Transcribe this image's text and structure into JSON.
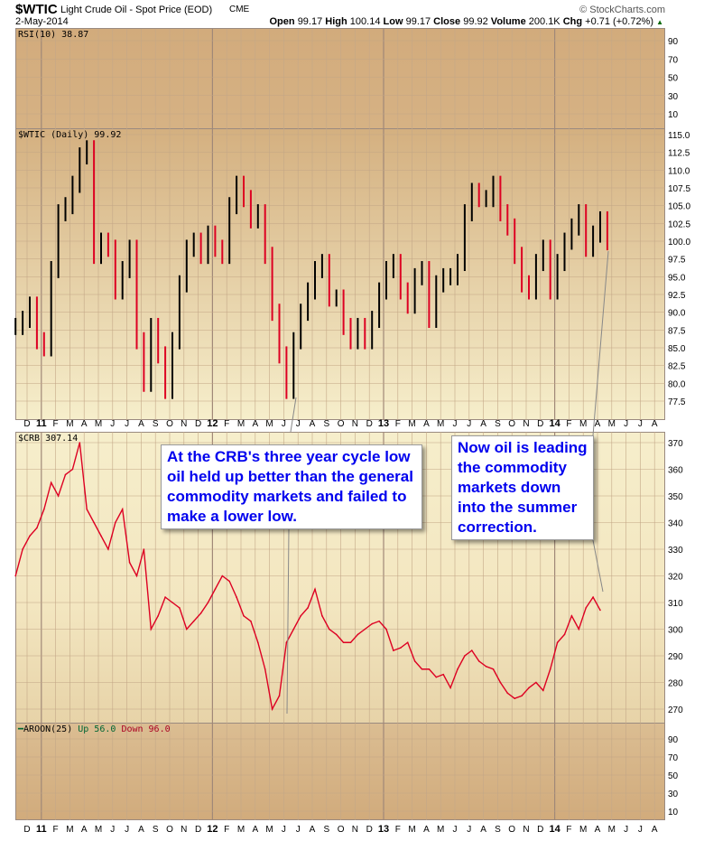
{
  "header": {
    "symbol": "$WTIC",
    "name": "Light Crude Oil - Spot Price (EOD)",
    "exchange": "CME",
    "date": "2-May-2014",
    "copyright": "© StockCharts.com",
    "open_label": "Open",
    "open": "99.17",
    "high_label": "High",
    "high": "100.14",
    "low_label": "Low",
    "low": "99.17",
    "close_label": "Close",
    "close": "99.92",
    "volume_label": "Volume",
    "volume": "200.1K",
    "chg_label": "Chg",
    "chg": "+0.71 (+0.72%)"
  },
  "colors": {
    "panel_top": "#d0aa7a",
    "panel_bottom": "#f5ebc8",
    "up": "#000000",
    "down": "#dd0022",
    "annotation_text": "#0000ee"
  },
  "panels": {
    "rsi": {
      "label": "RSI(10) 38.87",
      "ticks": [
        "90",
        "70",
        "50",
        "30",
        "10"
      ]
    },
    "wtic": {
      "label": "$WTIC (Daily) 99.92",
      "ticks": [
        "115.0",
        "112.5",
        "110.0",
        "107.5",
        "105.0",
        "102.5",
        "100.0",
        "97.5",
        "95.0",
        "92.5",
        "90.0",
        "87.5",
        "85.0",
        "82.5",
        "80.0",
        "77.5"
      ]
    },
    "crb": {
      "label": "$CRB 307.14",
      "ticks": [
        "370",
        "360",
        "350",
        "340",
        "330",
        "320",
        "310",
        "300",
        "290",
        "280",
        "270"
      ]
    },
    "aroon": {
      "label": "AROON(25)",
      "up": "Up 56.0",
      "down": "Down 96.0",
      "ticks": [
        "90",
        "70",
        "50",
        "30",
        "10"
      ]
    }
  },
  "x_axis": [
    "D",
    "11",
    "F",
    "M",
    "A",
    "M",
    "J",
    "J",
    "A",
    "S",
    "O",
    "N",
    "D",
    "12",
    "F",
    "M",
    "A",
    "M",
    "J",
    "J",
    "A",
    "S",
    "O",
    "N",
    "D",
    "13",
    "F",
    "M",
    "A",
    "M",
    "J",
    "J",
    "A",
    "S",
    "O",
    "N",
    "D",
    "14",
    "F",
    "M",
    "A",
    "M",
    "J",
    "J",
    "A"
  ],
  "annotations": {
    "crb": "At the CRB's three year cycle low oil held up better than the general commodity markets and failed to make a lower low.",
    "oil": "Now oil is leading the commodity markets down into the summer correction."
  },
  "chart_data": [
    {
      "type": "ohlc",
      "title": "$WTIC (Daily)",
      "ylim": [
        76,
        116
      ],
      "x_start": "2010-12",
      "step": "half-month",
      "values": [
        88,
        89,
        91,
        86,
        85,
        96,
        104,
        105,
        108,
        112,
        113,
        98,
        100,
        99,
        93,
        96,
        99,
        86,
        80,
        88,
        84,
        79,
        86,
        94,
        99,
        100,
        98,
        101,
        99,
        98,
        105,
        108,
        106,
        103,
        104,
        98,
        90,
        84,
        79,
        86,
        90,
        93,
        96,
        97,
        92,
        92,
        88,
        86,
        88,
        86,
        89,
        93,
        96,
        97,
        93,
        91,
        95,
        96,
        89,
        94,
        95,
        95,
        97,
        104,
        107,
        106,
        106,
        108,
        104,
        102,
        98,
        94,
        93,
        97,
        99,
        93,
        97,
        100,
        102,
        104,
        99,
        101,
        103,
        99.92
      ]
    },
    {
      "type": "line",
      "title": "$CRB",
      "ylim": [
        265,
        372
      ],
      "x_start": "2010-12",
      "step": "half-month",
      "values": [
        320,
        330,
        335,
        338,
        345,
        355,
        350,
        358,
        360,
        370,
        345,
        340,
        335,
        330,
        340,
        345,
        325,
        320,
        330,
        300,
        305,
        312,
        310,
        308,
        300,
        303,
        306,
        310,
        315,
        320,
        318,
        312,
        305,
        303,
        295,
        285,
        270,
        275,
        295,
        300,
        305,
        308,
        315,
        305,
        300,
        298,
        295,
        295,
        298,
        300,
        302,
        303,
        300,
        292,
        293,
        295,
        288,
        285,
        285,
        282,
        283,
        278,
        285,
        290,
        292,
        288,
        286,
        285,
        280,
        276,
        274,
        275,
        278,
        280,
        277,
        285,
        295,
        298,
        305,
        300,
        308,
        312,
        307.14
      ]
    }
  ]
}
